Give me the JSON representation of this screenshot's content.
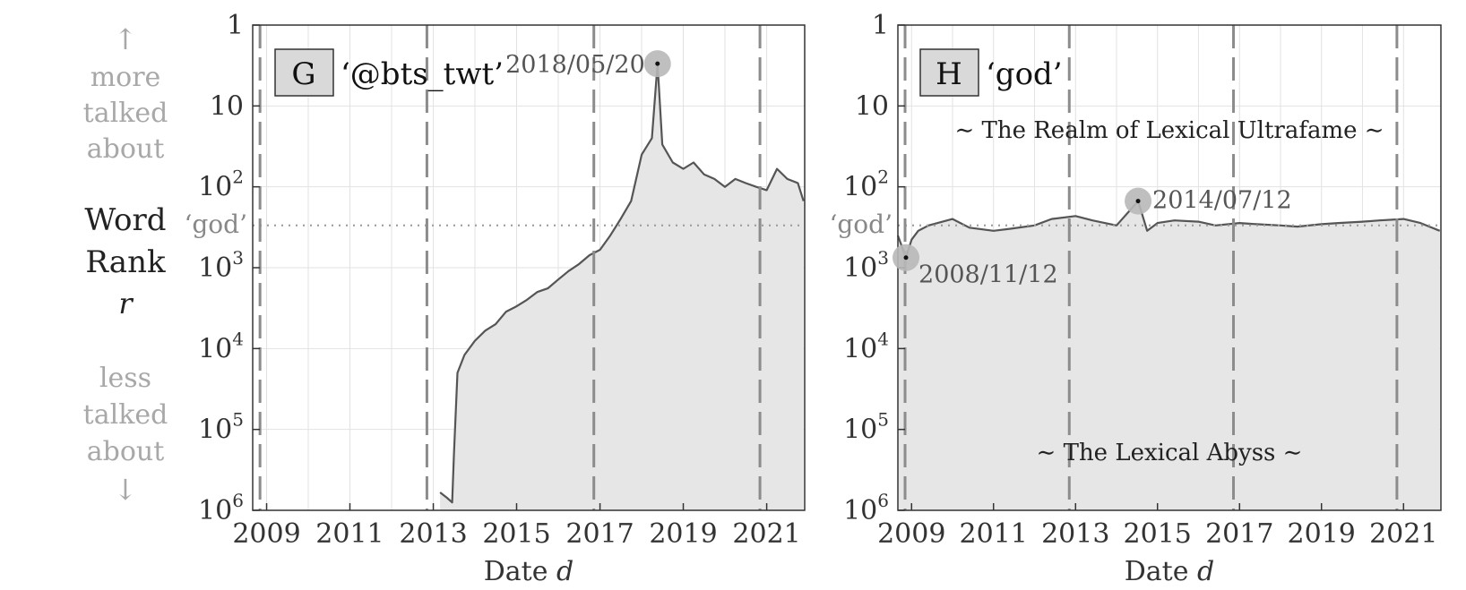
{
  "side_labels": {
    "up_arrow": "↑",
    "more_lines": [
      "more",
      "talked",
      "about"
    ],
    "word_rank_lines": [
      "Word",
      "Rank",
      "r"
    ],
    "less_lines": [
      "less",
      "talked",
      "about"
    ],
    "down_arrow": "↓"
  },
  "colors": {
    "series_line": "#555555",
    "area_fill": "#e6e6e6",
    "grid": "#e2e2e2",
    "dashed": "#8c8c8c",
    "reference_dotted": "#a0a0a0",
    "highlight_marker": "#b8b8b8",
    "side_text_muted": "#a8a8a8"
  },
  "chart_data": [
    {
      "type": "line",
      "panel_label": "G",
      "title": "‘@bts_twt’",
      "xlabel": "Date d",
      "ylabel": "Word Rank r",
      "x_range": [
        "2008-09-01",
        "2021-11-30"
      ],
      "x_ticks": [
        "2009",
        "2011",
        "2013",
        "2015",
        "2017",
        "2019",
        "2021"
      ],
      "y_scale": "log",
      "y_inverted": true,
      "y_range": [
        1,
        1000000
      ],
      "y_ticks": [
        "1",
        "10",
        "10^2",
        "10^3",
        "10^4",
        "10^5",
        "10^6"
      ],
      "grid": true,
      "fill_below": true,
      "reference_line": {
        "label": "‘god’",
        "value": 300
      },
      "vertical_dashed_dates": [
        "2008-11-04",
        "2012-11-06",
        "2016-11-08",
        "2020-11-03"
      ],
      "annotations": [
        {
          "label": "2018/05/20",
          "date": "2018-05-20",
          "value": 3
        }
      ],
      "series": [
        {
          "x": [
            "2013-03-01",
            "2013-05-01",
            "2013-06-15",
            "2013-07-01",
            "2013-08-01",
            "2013-10-01",
            "2014-01-01",
            "2014-04-01",
            "2014-07-01",
            "2014-10-01",
            "2015-01-01",
            "2015-04-01",
            "2015-07-01",
            "2015-10-01",
            "2016-01-01",
            "2016-04-01",
            "2016-07-01",
            "2016-10-01",
            "2017-01-01",
            "2017-04-01",
            "2017-07-01",
            "2017-10-01",
            "2018-01-01",
            "2018-04-01",
            "2018-05-20",
            "2018-07-01",
            "2018-10-01",
            "2019-01-01",
            "2019-04-01",
            "2019-07-01",
            "2019-10-01",
            "2020-01-01",
            "2020-04-01",
            "2020-07-01",
            "2020-10-01",
            "2021-01-01",
            "2021-04-01",
            "2021-07-01",
            "2021-10-01",
            "2021-11-20"
          ],
          "y": [
            600000,
            700000,
            800000,
            200000,
            20000,
            12000,
            8000,
            6000,
            5000,
            3500,
            3000,
            2500,
            2000,
            1800,
            1400,
            1100,
            900,
            700,
            600,
            400,
            250,
            150,
            40,
            25,
            3,
            30,
            50,
            60,
            50,
            70,
            80,
            100,
            80,
            90,
            100,
            110,
            60,
            80,
            90,
            150
          ]
        }
      ]
    },
    {
      "type": "line",
      "panel_label": "H",
      "title": "‘god’",
      "xlabel": "Date d",
      "x_range": [
        "2008-09-01",
        "2021-11-30"
      ],
      "x_ticks": [
        "2009",
        "2011",
        "2013",
        "2015",
        "2017",
        "2019",
        "2021"
      ],
      "y_scale": "log",
      "y_inverted": true,
      "y_range": [
        1,
        1000000
      ],
      "y_ticks": [
        "1",
        "10",
        "10^2",
        "10^3",
        "10^4",
        "10^5",
        "10^6"
      ],
      "grid": true,
      "fill_below": true,
      "reference_line": {
        "label": "‘god’",
        "value": 300
      },
      "vertical_dashed_dates": [
        "2008-11-04",
        "2012-11-06",
        "2016-11-08",
        "2020-11-03"
      ],
      "region_labels": [
        "∼ The Realm of Lexical Ultrafame ∼",
        "∼ The Lexical Abyss ∼"
      ],
      "annotations": [
        {
          "label": "2008/11/12",
          "date": "2008-11-12",
          "value": 750
        },
        {
          "label": "2014/07/12",
          "date": "2014-07-12",
          "value": 150
        }
      ],
      "series": [
        {
          "x": [
            "2008-09-01",
            "2008-11-12",
            "2009-01-01",
            "2009-03-01",
            "2009-06-01",
            "2010-01-01",
            "2010-06-01",
            "2011-01-01",
            "2011-06-01",
            "2012-01-01",
            "2012-06-01",
            "2013-01-01",
            "2013-06-01",
            "2014-01-01",
            "2014-07-12",
            "2014-10-01",
            "2015-01-01",
            "2015-06-01",
            "2016-01-01",
            "2016-06-01",
            "2017-01-01",
            "2017-06-01",
            "2018-01-01",
            "2018-06-01",
            "2019-01-01",
            "2019-06-01",
            "2020-01-01",
            "2020-06-01",
            "2021-01-01",
            "2021-06-01",
            "2021-11-20"
          ],
          "y": [
            400,
            750,
            450,
            350,
            300,
            250,
            320,
            350,
            330,
            300,
            250,
            230,
            260,
            300,
            150,
            350,
            280,
            260,
            270,
            300,
            280,
            290,
            300,
            310,
            290,
            280,
            270,
            260,
            250,
            280,
            350
          ]
        }
      ]
    }
  ]
}
